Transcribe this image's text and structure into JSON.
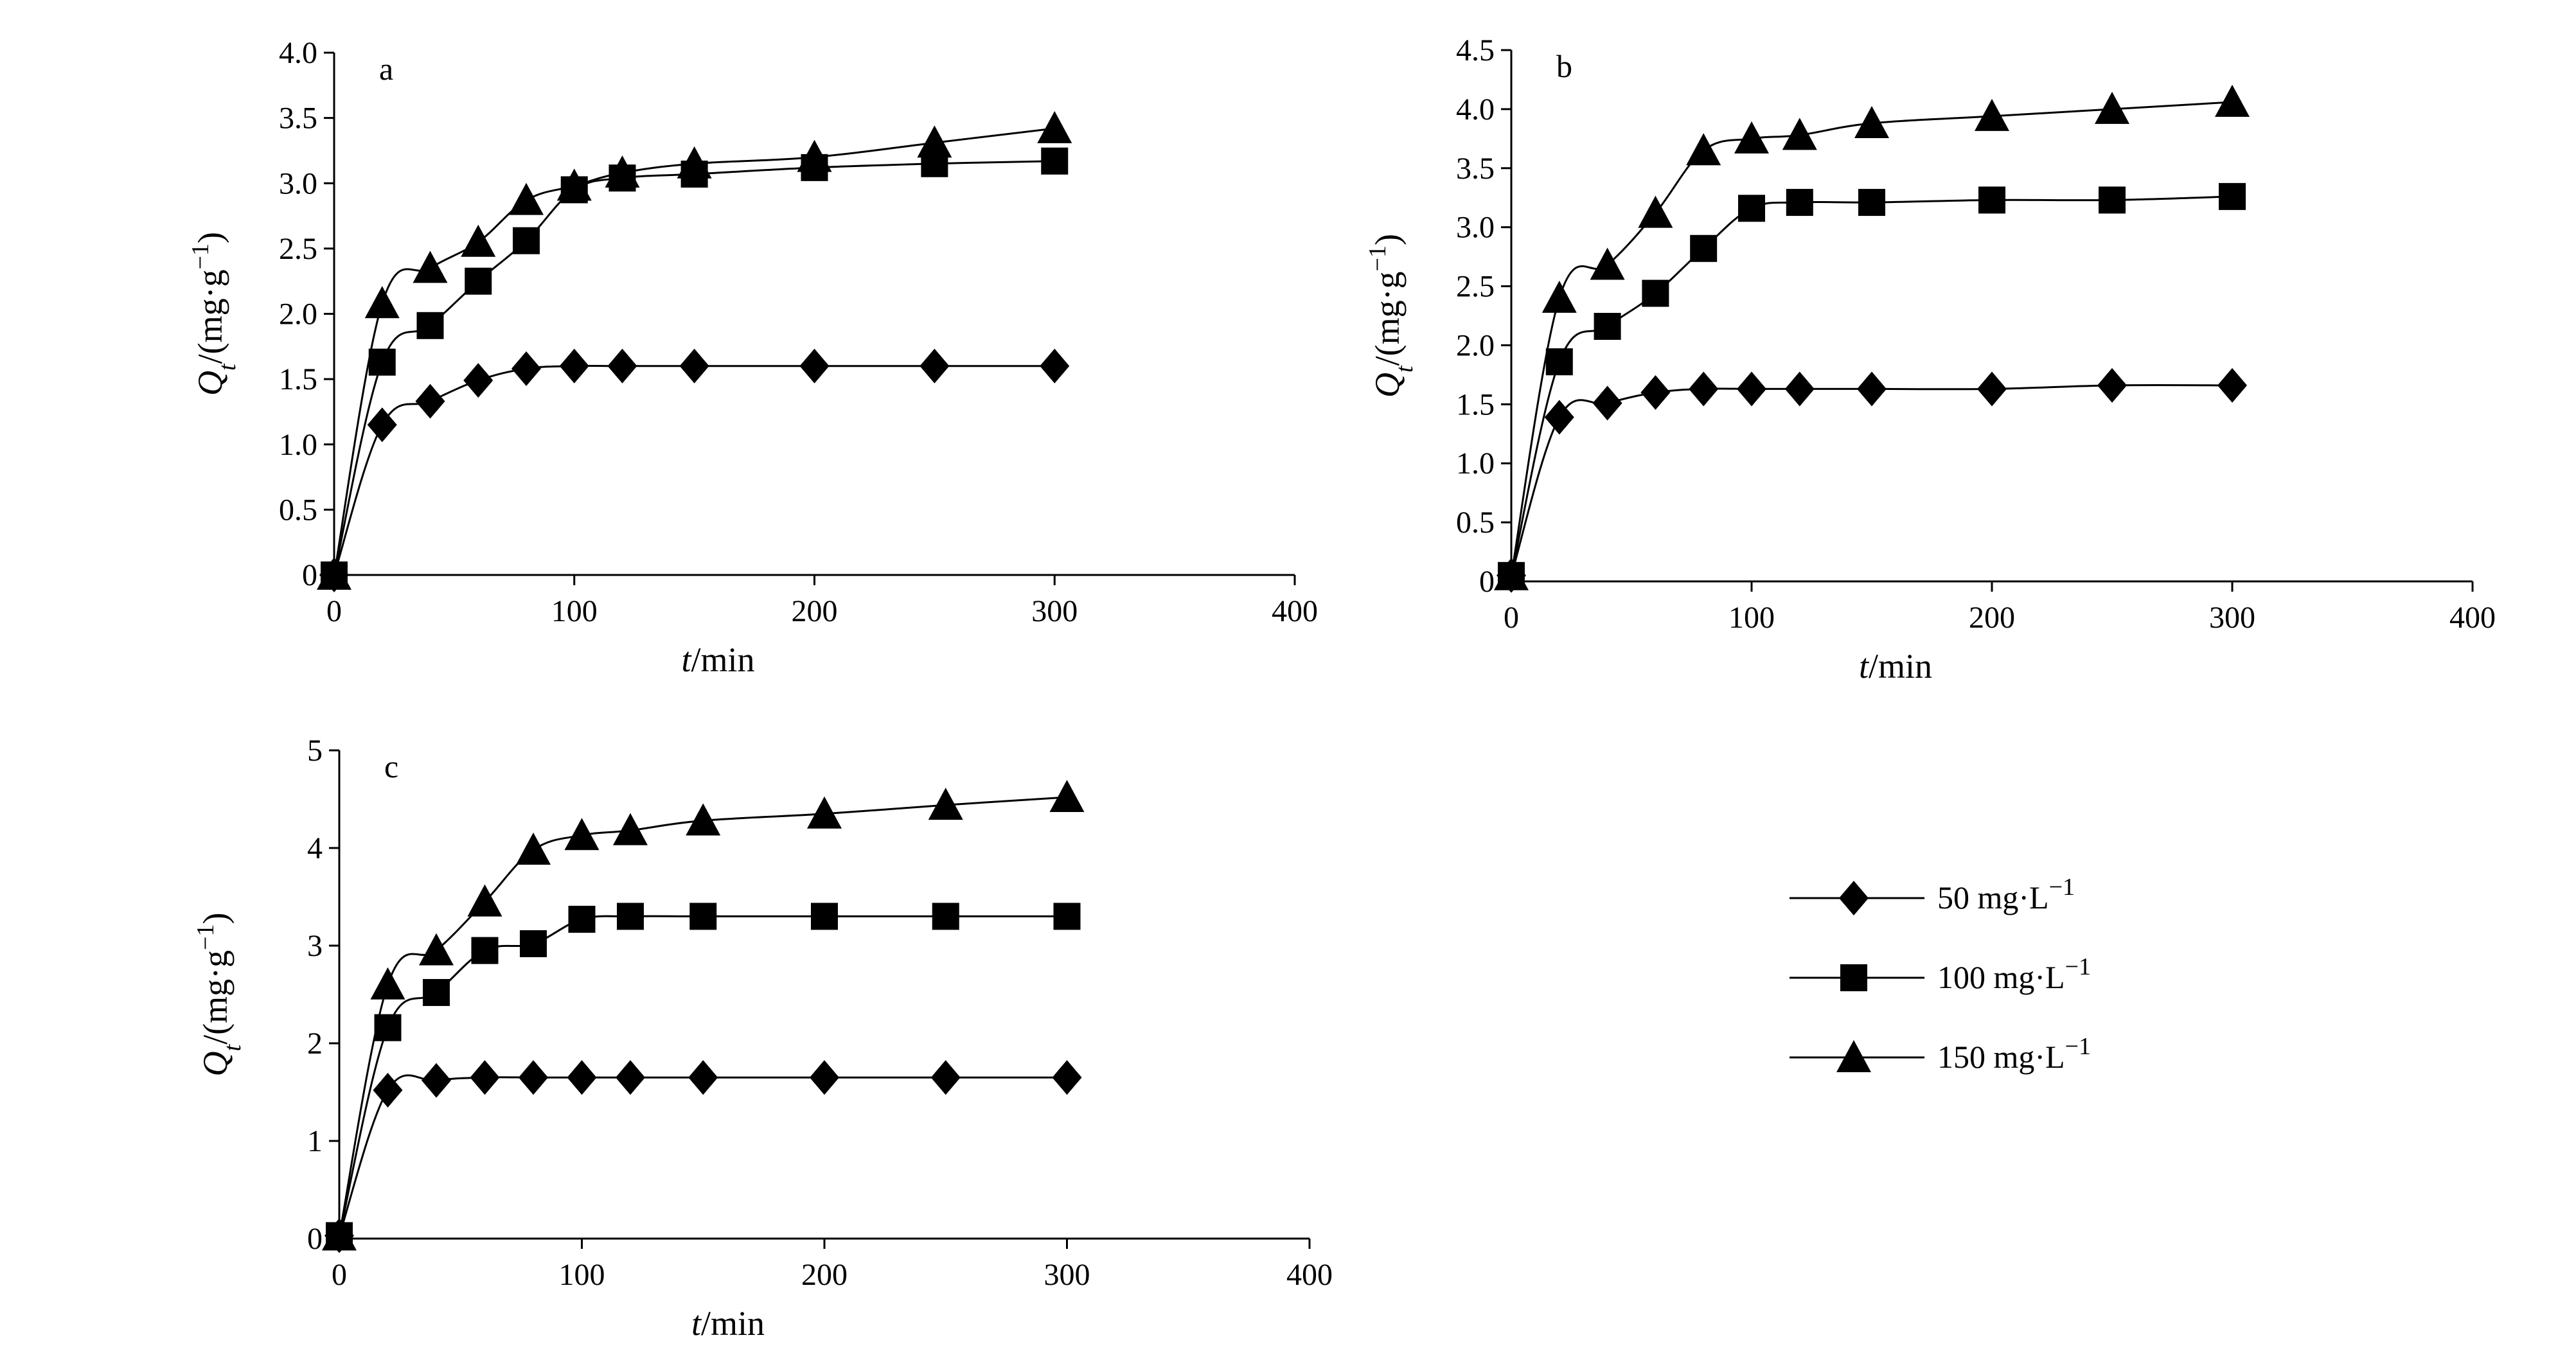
{
  "figure": {
    "colors": {
      "ink": "#000000",
      "background": "#ffffff"
    }
  },
  "legend": {
    "placement": "right",
    "entries": [
      {
        "marker": "diamond",
        "prefix": "50 mg·L",
        "sup": "−1"
      },
      {
        "marker": "square",
        "prefix": "100 mg·L",
        "sup": "−1"
      },
      {
        "marker": "triangle",
        "prefix": "150 mg·L",
        "sup": "−1"
      }
    ]
  },
  "chart_data": [
    {
      "id": "a",
      "panel_tag": "a",
      "type": "line",
      "xlabel": {
        "italic": "t",
        "rest": "/min"
      },
      "ylabel": {
        "q": "Q",
        "sub": "t",
        "mid": "/(mg·g",
        "sup": "−1",
        "end": ")"
      },
      "xlim": [
        0,
        400
      ],
      "ylim": [
        0,
        4
      ],
      "xticks": [
        0,
        100,
        200,
        300,
        400
      ],
      "xtick_labels": [
        "0",
        "100",
        "200",
        "300",
        "400"
      ],
      "yticks": [
        0,
        0.5,
        1,
        1.5,
        2,
        2.5,
        3,
        3.5,
        4
      ],
      "ytick_labels": [
        "0",
        "0.5",
        "1.0",
        "1.5",
        "2.0",
        "2.5",
        "3.0",
        "3.5",
        "4.0"
      ],
      "x": [
        0,
        20,
        40,
        60,
        80,
        100,
        120,
        150,
        200,
        250,
        300
      ],
      "series": [
        {
          "name": "50 mg·L−1",
          "marker": "diamond",
          "values": [
            0,
            1.15,
            1.33,
            1.49,
            1.58,
            1.6,
            1.6,
            1.6,
            1.6,
            1.6,
            1.6
          ]
        },
        {
          "name": "100 mg·L−1",
          "marker": "square",
          "values": [
            0,
            1.63,
            1.91,
            2.25,
            2.56,
            2.95,
            3.04,
            3.07,
            3.12,
            3.15,
            3.17
          ]
        },
        {
          "name": "150 mg·L−1",
          "marker": "triangle",
          "values": [
            0,
            2.08,
            2.35,
            2.55,
            2.87,
            2.98,
            3.08,
            3.15,
            3.2,
            3.31,
            3.42
          ]
        }
      ]
    },
    {
      "id": "b",
      "panel_tag": "b",
      "type": "line",
      "xlabel": {
        "italic": "t",
        "rest": "/min"
      },
      "ylabel": {
        "q": "Q",
        "sub": "t",
        "mid": "/(mg·g",
        "sup": "−1",
        "end": ")"
      },
      "xlim": [
        0,
        400
      ],
      "ylim": [
        0,
        4.5
      ],
      "xticks": [
        0,
        100,
        200,
        300,
        400
      ],
      "xtick_labels": [
        "0",
        "100",
        "200",
        "300",
        "400"
      ],
      "yticks": [
        0,
        0.5,
        1,
        1.5,
        2,
        2.5,
        3,
        3.5,
        4,
        4.5
      ],
      "ytick_labels": [
        "0",
        "0.5",
        "1.0",
        "1.5",
        "2.0",
        "2.5",
        "3.0",
        "3.5",
        "4.0",
        "4.5"
      ],
      "x": [
        0,
        20,
        40,
        60,
        80,
        100,
        120,
        150,
        200,
        250,
        300
      ],
      "series": [
        {
          "name": "50 mg·L−1",
          "marker": "diamond",
          "values": [
            0.05,
            1.39,
            1.51,
            1.6,
            1.63,
            1.63,
            1.63,
            1.63,
            1.63,
            1.66,
            1.66
          ]
        },
        {
          "name": "100 mg·L−1",
          "marker": "square",
          "values": [
            0.05,
            1.86,
            2.16,
            2.44,
            2.82,
            3.16,
            3.21,
            3.21,
            3.23,
            3.23,
            3.26
          ]
        },
        {
          "name": "150 mg·L−1",
          "marker": "triangle",
          "values": [
            0.05,
            2.4,
            2.68,
            3.12,
            3.65,
            3.75,
            3.78,
            3.88,
            3.94,
            4.0,
            4.06
          ]
        }
      ]
    },
    {
      "id": "c",
      "panel_tag": "c",
      "type": "line",
      "xlabel": {
        "italic": "t",
        "rest": "/min"
      },
      "ylabel": {
        "q": "Q",
        "sub": "t",
        "mid": "/(mg·g",
        "sup": "−1",
        "end": ")"
      },
      "xlim": [
        0,
        400
      ],
      "ylim": [
        0,
        5
      ],
      "xticks": [
        0,
        100,
        200,
        300,
        400
      ],
      "xtick_labels": [
        "0",
        "100",
        "200",
        "300",
        "400"
      ],
      "yticks": [
        0,
        1,
        2,
        3,
        4,
        5
      ],
      "ytick_labels": [
        "0",
        "1",
        "2",
        "3",
        "4",
        "5"
      ],
      "x": [
        0,
        20,
        40,
        60,
        80,
        100,
        120,
        150,
        200,
        250,
        300
      ],
      "series": [
        {
          "name": "50 mg·L−1",
          "marker": "diamond",
          "values": [
            0.03,
            1.52,
            1.62,
            1.65,
            1.65,
            1.65,
            1.65,
            1.65,
            1.65,
            1.65,
            1.65
          ]
        },
        {
          "name": "100 mg·L−1",
          "marker": "square",
          "values": [
            0.03,
            2.16,
            2.52,
            2.95,
            3.02,
            3.27,
            3.3,
            3.3,
            3.3,
            3.3,
            3.3
          ]
        },
        {
          "name": "150 mg·L−1",
          "marker": "triangle",
          "values": [
            0.03,
            2.6,
            2.95,
            3.45,
            3.98,
            4.13,
            4.18,
            4.28,
            4.35,
            4.44,
            4.52
          ]
        }
      ]
    }
  ]
}
